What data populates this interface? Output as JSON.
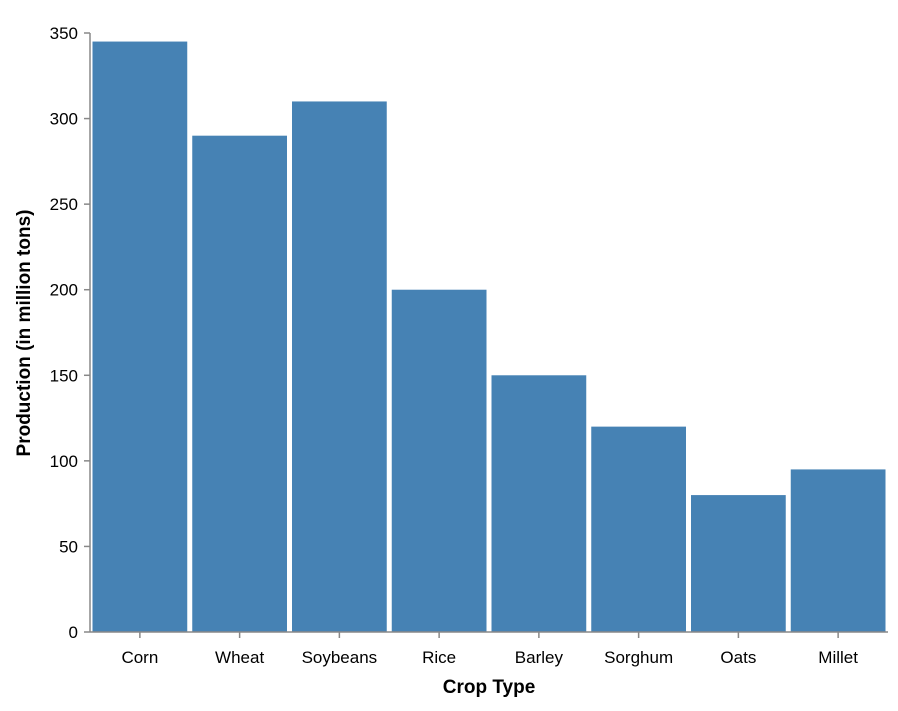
{
  "chart_data": {
    "type": "bar",
    "categories": [
      "Corn",
      "Wheat",
      "Soybeans",
      "Rice",
      "Barley",
      "Sorghum",
      "Oats",
      "Millet"
    ],
    "values": [
      345,
      290,
      310,
      200,
      150,
      120,
      80,
      95
    ],
    "xlabel": "Crop Type",
    "ylabel": "Production (in million tons)",
    "ylim": [
      0,
      350
    ],
    "yticks": [
      0,
      50,
      100,
      150,
      200,
      250,
      300,
      350
    ],
    "grid": false,
    "legend": "none",
    "bar_color": "#4682b4"
  }
}
